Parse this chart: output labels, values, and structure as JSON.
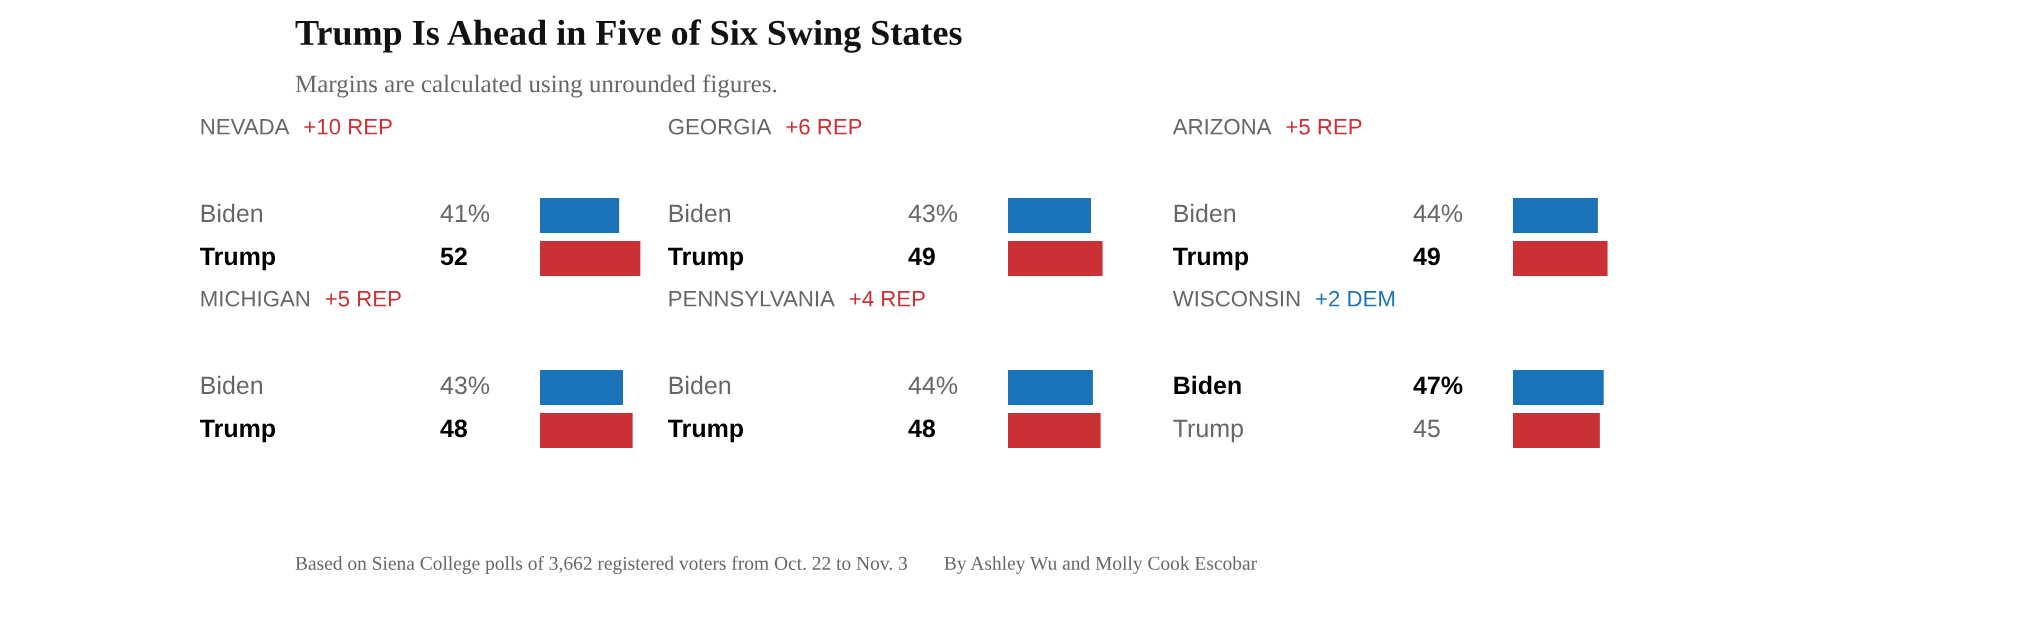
{
  "chart_data": [
    {
      "type": "other",
      "title": "Trump Is Ahead in Five of Six Swing States",
      "subtitle": "Margins are calculated using unrounded figures.",
      "annotations": [
        "Based on Siena College polls of 3,662 registered voters from Oct. 22 to Nov. 3",
        "By Ashley Wu and Molly Cook Escobar"
      ]
    },
    {
      "type": "bar",
      "orientation": "horizontal",
      "title": "NEVADA",
      "subtitle": "+10 REP",
      "categories": [
        "Biden",
        "Trump"
      ],
      "values": [
        41,
        52
      ],
      "colors": [
        "#1a73b8",
        "#c93135"
      ],
      "value_labels": [
        "41%",
        "52"
      ]
    },
    {
      "type": "bar",
      "orientation": "horizontal",
      "title": "GEORGIA",
      "subtitle": "+6 REP",
      "categories": [
        "Biden",
        "Trump"
      ],
      "values": [
        43,
        49
      ],
      "colors": [
        "#1a73b8",
        "#c93135"
      ],
      "value_labels": [
        "43%",
        "49"
      ]
    },
    {
      "type": "bar",
      "orientation": "horizontal",
      "title": "ARIZONA",
      "subtitle": "+5 REP",
      "categories": [
        "Biden",
        "Trump"
      ],
      "values": [
        44,
        49
      ],
      "colors": [
        "#1a73b8",
        "#c93135"
      ],
      "value_labels": [
        "44%",
        "49"
      ]
    },
    {
      "type": "bar",
      "orientation": "horizontal",
      "title": "MICHIGAN",
      "subtitle": "+5 REP",
      "categories": [
        "Biden",
        "Trump"
      ],
      "values": [
        43,
        48
      ],
      "colors": [
        "#1a73b8",
        "#c93135"
      ],
      "value_labels": [
        "43%",
        "48"
      ]
    },
    {
      "type": "bar",
      "orientation": "horizontal",
      "title": "PENNSYLVANIA",
      "subtitle": "+4 REP",
      "categories": [
        "Biden",
        "Trump"
      ],
      "values": [
        44,
        48
      ],
      "colors": [
        "#1a73b8",
        "#c93135"
      ],
      "value_labels": [
        "44%",
        "48"
      ]
    },
    {
      "type": "bar",
      "orientation": "horizontal",
      "title": "WISCONSIN",
      "subtitle": "+2 DEM",
      "categories": [
        "Biden",
        "Trump"
      ],
      "values": [
        47,
        45
      ],
      "colors": [
        "#1a73b8",
        "#c93135"
      ],
      "value_labels": [
        "47%",
        "45"
      ]
    }
  ]
}
